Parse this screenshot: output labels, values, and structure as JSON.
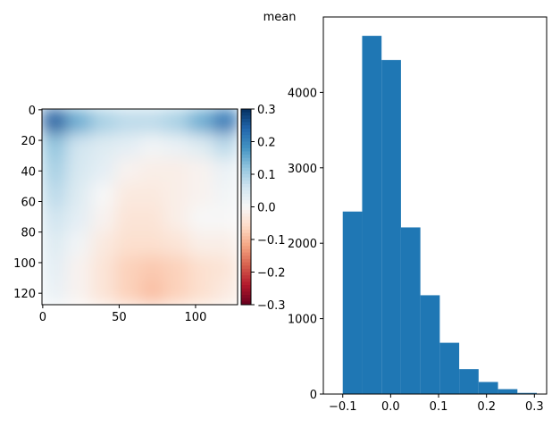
{
  "title": "mean",
  "chart_data": [
    {
      "type": "heatmap",
      "colormap": "RdBu",
      "clim": [
        -0.3,
        0.3
      ],
      "values": [
        [
          0.25,
          0.15,
          0.1,
          0.08,
          0.08,
          0.1,
          0.15,
          0.22
        ],
        [
          0.12,
          0.06,
          0.04,
          0.03,
          0.01,
          0.02,
          0.04,
          0.08
        ],
        [
          0.1,
          0.05,
          0.03,
          -0.01,
          -0.02,
          -0.02,
          -0.01,
          0.02
        ],
        [
          0.08,
          0.04,
          0.0,
          -0.03,
          -0.03,
          -0.02,
          -0.01,
          0.01
        ],
        [
          0.06,
          0.03,
          -0.01,
          -0.04,
          -0.04,
          -0.02,
          0.0,
          0.0
        ],
        [
          0.04,
          0.01,
          -0.03,
          -0.05,
          -0.05,
          -0.04,
          -0.02,
          -0.02
        ],
        [
          0.03,
          -0.01,
          -0.04,
          -0.07,
          -0.08,
          -0.07,
          -0.05,
          -0.04
        ],
        [
          0.02,
          -0.01,
          -0.04,
          -0.07,
          -0.09,
          -0.07,
          -0.05,
          -0.03
        ]
      ],
      "xlim": [
        -0.5,
        127.5
      ],
      "ylim": [
        127.5,
        -0.5
      ],
      "xticks": [
        0,
        50,
        100
      ],
      "yticks": [
        0,
        20,
        40,
        60,
        80,
        100,
        120
      ],
      "cbar_ticks": [
        0.3,
        0.2,
        0.1,
        {
          "value": 0.0,
          "label": "0.0"
        },
        {
          "value": -0.1,
          "label": "−0.1"
        },
        {
          "value": -0.2,
          "label": "−0.2"
        },
        {
          "value": -0.3,
          "label": "−0.3"
        }
      ]
    },
    {
      "type": "histogram",
      "color": "#1f77b4",
      "bins": [
        -0.1,
        -0.0595,
        -0.019,
        0.0215,
        0.062,
        0.1025,
        0.143,
        0.1835,
        0.224,
        0.2645,
        0.305
      ],
      "values": [
        2420,
        4750,
        4430,
        2210,
        1310,
        680,
        330,
        160,
        65,
        15
      ],
      "xlim": [
        -0.1405,
        0.3255
      ],
      "ylim": [
        0,
        5000
      ],
      "xticks": [
        {
          "value": -0.1,
          "label": "−0.1"
        },
        {
          "value": 0.0,
          "label": "0.0"
        },
        0.1,
        0.2,
        0.3
      ],
      "yticks": [
        0,
        1000,
        2000,
        3000,
        4000
      ]
    }
  ]
}
